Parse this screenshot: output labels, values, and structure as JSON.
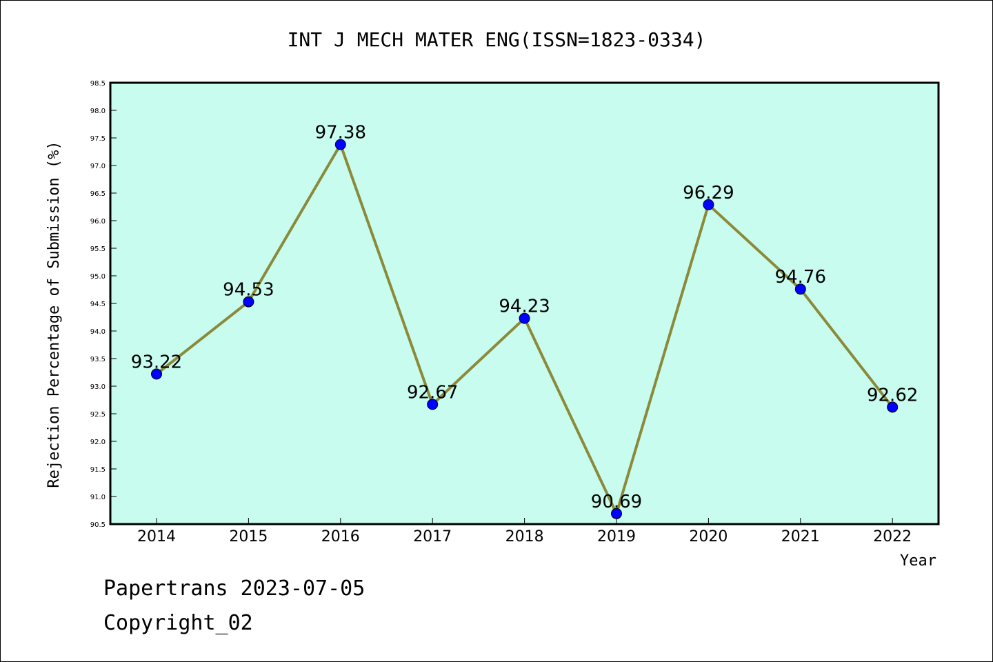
{
  "chart_data": {
    "type": "line",
    "title": "INT J MECH MATER ENG(ISSN=1823-0334)",
    "xlabel": "Year",
    "ylabel": "Rejection Percentage of Submission (%)",
    "categories": [
      "2014",
      "2015",
      "2016",
      "2017",
      "2018",
      "2019",
      "2020",
      "2021",
      "2022"
    ],
    "series": [
      {
        "values": [
          93.22,
          94.53,
          97.38,
          92.67,
          94.23,
          90.69,
          96.29,
          94.76,
          92.62
        ],
        "labels": [
          "93.22",
          "94.53",
          "97.38",
          "92.67",
          "94.23",
          "90.69",
          "96.29",
          "94.76",
          "92.62"
        ]
      }
    ],
    "ylim": [
      90.5,
      98.5
    ],
    "yticks": [
      "90.5",
      "91.0",
      "91.5",
      "92.0",
      "92.5",
      "93.0",
      "93.5",
      "94.0",
      "94.5",
      "95.0",
      "95.5",
      "96.0",
      "96.5",
      "97.0",
      "97.5",
      "98.0",
      "98.5"
    ],
    "grid": false,
    "colors": {
      "plot_background": "#c8fcee",
      "line": "#8b8a3a",
      "marker": "#0000ff"
    }
  },
  "footer": {
    "line1": "Papertrans 2023-07-05",
    "line2": "Copyright_02"
  }
}
